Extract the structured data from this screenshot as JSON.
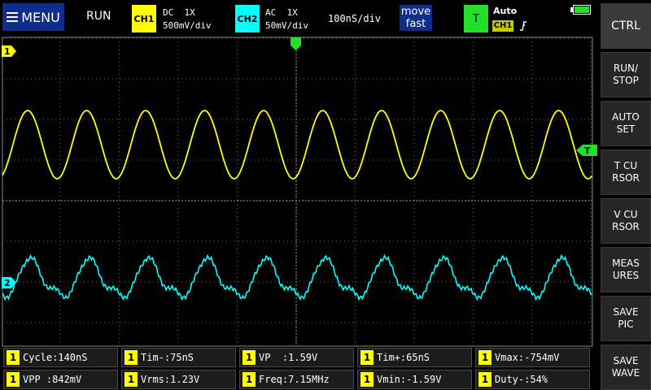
{
  "top": {
    "menu_label": "MENU",
    "run_state": "RUN",
    "ch1": {
      "label": "CH1",
      "coupling": "DC  1X",
      "scale": "500mV/div",
      "color": "#ffff00"
    },
    "ch2": {
      "label": "CH2",
      "coupling": "AC  1X",
      "scale": "50mV/div",
      "color": "#00ffff"
    },
    "timebase": "100nS/div",
    "move": {
      "line1": "move",
      "line2": "fast"
    },
    "trigger": {
      "label": "T",
      "mode": "Auto",
      "source": "CH1",
      "edge_icon": "rising-edge-icon"
    },
    "battery_icon": "battery-icon"
  },
  "sidebar": {
    "buttons": [
      {
        "label": "CTRL"
      },
      {
        "label": "RUN/\nSTOP"
      },
      {
        "label": "AUTO\nSET"
      },
      {
        "label": "T CU\nRSOR"
      },
      {
        "label": "V CU\nRSOR"
      },
      {
        "label": "MEAS\nURES"
      },
      {
        "label": "SAVE\nPIC"
      },
      {
        "label": "SAVE\nWAVE"
      }
    ]
  },
  "markers": {
    "ch1_marker": "1",
    "ch2_marker": "2",
    "trigger_level_marker": "T"
  },
  "measurements": [
    {
      "channel": "1",
      "text": "Cycle:140nS"
    },
    {
      "channel": "1",
      "text": "Tim-:75nS"
    },
    {
      "channel": "1",
      "text": "VP  :1.59V"
    },
    {
      "channel": "1",
      "text": "Tim+:65nS"
    },
    {
      "channel": "1",
      "text": "Vmax:-754mV"
    },
    {
      "channel": "1",
      "text": "VPP :842mV"
    },
    {
      "channel": "1",
      "text": "Vrms:1.23V"
    },
    {
      "channel": "1",
      "text": "Freq:7.15MHz"
    },
    {
      "channel": "1",
      "text": "Vmin:-1.59V"
    },
    {
      "channel": "1",
      "text": "Duty-:54%"
    }
  ]
}
